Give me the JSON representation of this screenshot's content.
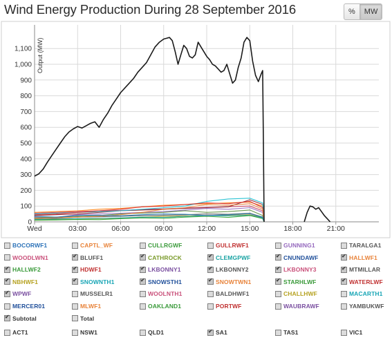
{
  "title": "Wind Energy Production During 28 September 2016",
  "toggle": {
    "percent_label": "%",
    "mw_label": "MW",
    "active": "MW"
  },
  "chart_data": {
    "type": "line",
    "title": "Wind Energy Production During 28 September 2016",
    "ylabel": "Output (MW)",
    "xlabel": "",
    "xlim_hours": [
      0,
      24
    ],
    "ylim": [
      0,
      1250
    ],
    "y_ticks": [
      "0",
      "100",
      "200",
      "300",
      "400",
      "500",
      "600",
      "700",
      "800",
      "900",
      "1,000",
      "1,100"
    ],
    "x_ticks": [
      {
        "label": "Wed",
        "hour": 0
      },
      {
        "label": "03:00",
        "hour": 3
      },
      {
        "label": "06:00",
        "hour": 6
      },
      {
        "label": "09:00",
        "hour": 9
      },
      {
        "label": "12:00",
        "hour": 12
      },
      {
        "label": "15:00",
        "hour": 15
      },
      {
        "label": "18:00",
        "hour": 18
      },
      {
        "label": "21:00",
        "hour": 21
      }
    ],
    "grid": true,
    "series": [
      {
        "name": "Subtotal",
        "color": "#1a1a1a",
        "segments": [
          {
            "hour": [
              0,
              0.3,
              0.6,
              0.9,
              1.2,
              1.5,
              1.8,
              2.1,
              2.4,
              2.7,
              3.0,
              3.3,
              3.6,
              3.9,
              4.2,
              4.5,
              4.8,
              5.1,
              5.4,
              5.7,
              6.0,
              6.3,
              6.6,
              6.9,
              7.2,
              7.5,
              7.8,
              8.1,
              8.4,
              8.7,
              9.0,
              9.2,
              9.4,
              9.6,
              9.8,
              10.0,
              10.2,
              10.4,
              10.6,
              10.8,
              11.0,
              11.2,
              11.4,
              11.6,
              11.8,
              12.0,
              12.2,
              12.4,
              12.6,
              12.8,
              13.0,
              13.2,
              13.4,
              13.6,
              13.8,
              14.0,
              14.2,
              14.4,
              14.6,
              14.8,
              15.0,
              15.2,
              15.4,
              15.6,
              15.8,
              15.9,
              15.95,
              16.0
            ],
            "mw": [
              290,
              305,
              335,
              380,
              420,
              460,
              500,
              540,
              570,
              590,
              605,
              595,
              610,
              625,
              635,
              600,
              650,
              690,
              740,
              780,
              820,
              850,
              880,
              910,
              950,
              980,
              1010,
              1060,
              1110,
              1140,
              1160,
              1165,
              1170,
              1150,
              1080,
              1000,
              1060,
              1120,
              1100,
              1050,
              1040,
              1060,
              1140,
              1110,
              1080,
              1050,
              1030,
              1000,
              990,
              970,
              950,
              960,
              1000,
              940,
              880,
              900,
              980,
              1040,
              1140,
              1170,
              1150,
              1020,
              930,
              890,
              940,
              960,
              500,
              0
            ]
          },
          {
            "hour": [
              18.8,
              19.0,
              19.2,
              19.4,
              19.6,
              19.8,
              20.0,
              20.2,
              20.4,
              20.6
            ],
            "mw": [
              0,
              60,
              100,
              95,
              80,
              90,
              65,
              40,
              20,
              0
            ]
          }
        ]
      },
      {
        "name": "BOCORWF1",
        "color": "#1f77b4",
        "segments": [
          {
            "hour": [
              0,
              1.5,
              3,
              4.5,
              6,
              7.5,
              9,
              10.5,
              12,
              13.5,
              15,
              15.9,
              16.0
            ],
            "mw": [
              35,
              30,
              40,
              42,
              38,
              45,
              50,
              48,
              40,
              45,
              52,
              30,
              0
            ]
          }
        ]
      },
      {
        "name": "CAPTL_WF",
        "color": "#e8833a",
        "segments": [
          {
            "hour": [
              0,
              1.5,
              3,
              4.5,
              6,
              7.5,
              9,
              10.5,
              12,
              13.5,
              15,
              15.9,
              16.0
            ],
            "mw": [
              20,
              25,
              30,
              35,
              45,
              60,
              80,
              90,
              110,
              105,
              115,
              80,
              0
            ]
          }
        ]
      },
      {
        "name": "CULLRGWF",
        "color": "#2ca02c",
        "segments": [
          {
            "hour": [
              0,
              1.5,
              3,
              4.5,
              6,
              7.5,
              9,
              10.5,
              12,
              13.5,
              15,
              15.9,
              16.0
            ],
            "mw": [
              10,
              12,
              15,
              14,
              20,
              25,
              22,
              30,
              35,
              28,
              40,
              20,
              0
            ]
          }
        ]
      },
      {
        "name": "GULLRWF1",
        "color": "#d62728",
        "segments": [
          {
            "hour": [
              0,
              1.5,
              3,
              4.5,
              6,
              7.5,
              9,
              10.5,
              12,
              13.5,
              15,
              15.9,
              16.0
            ],
            "mw": [
              45,
              50,
              60,
              70,
              80,
              95,
              100,
              110,
              120,
              115,
              130,
              90,
              0
            ]
          }
        ]
      },
      {
        "name": "HALLWF2",
        "color": "#17becf",
        "segments": [
          {
            "hour": [
              0,
              1.5,
              3,
              4.5,
              6,
              7.5,
              9,
              10.5,
              12,
              13.5,
              15,
              15.9,
              16.0
            ],
            "mw": [
              50,
              55,
              60,
              65,
              70,
              80,
              90,
              100,
              130,
              145,
              150,
              120,
              0
            ]
          }
        ]
      },
      {
        "name": "SNOWTWN1",
        "color": "#ff7f0e",
        "segments": [
          {
            "hour": [
              0,
              1.5,
              3,
              4.5,
              6,
              7.5,
              9,
              10.5,
              12,
              13.5,
              15,
              15.9,
              16.0
            ],
            "mw": [
              60,
              65,
              70,
              80,
              85,
              95,
              105,
              110,
              115,
              120,
              125,
              100,
              0
            ]
          }
        ]
      },
      {
        "name": "WATERLWF",
        "color": "#8c1d2a",
        "segments": [
          {
            "hour": [
              0,
              1.5,
              3,
              4.5,
              6,
              7.5,
              9,
              10.5,
              12,
              13.5,
              15,
              15.9,
              16.0
            ],
            "mw": [
              40,
              45,
              50,
              60,
              70,
              75,
              80,
              85,
              90,
              95,
              140,
              110,
              0
            ]
          }
        ]
      },
      {
        "name": "STARHLWF",
        "color": "#5b8c3a",
        "segments": [
          {
            "hour": [
              0,
              1.5,
              3,
              4.5,
              6,
              7.5,
              9,
              10.5,
              12,
              13.5,
              15,
              15.9,
              16.0
            ],
            "mw": [
              25,
              30,
              35,
              40,
              50,
              55,
              60,
              70,
              60,
              65,
              75,
              40,
              0
            ]
          }
        ]
      },
      {
        "name": "WPWF",
        "color": "#9467bd",
        "segments": [
          {
            "hour": [
              0,
              1.5,
              3,
              4.5,
              6,
              7.5,
              9,
              10.5,
              12,
              13.5,
              15,
              15.9,
              16.0
            ],
            "mw": [
              30,
              28,
              45,
              50,
              55,
              60,
              65,
              75,
              85,
              80,
              90,
              60,
              0
            ]
          }
        ]
      },
      {
        "name": "CLEMGPWF",
        "color": "#1aa3a3",
        "segments": [
          {
            "hour": [
              0,
              1.5,
              3,
              4.5,
              6,
              7.5,
              9,
              10.5,
              12,
              13.5,
              15,
              15.9,
              16.0
            ],
            "mw": [
              15,
              18,
              20,
              22,
              25,
              30,
              28,
              35,
              40,
              38,
              42,
              25,
              0
            ]
          }
        ]
      },
      {
        "name": "LKBONNY2",
        "color": "#555555",
        "segments": [
          {
            "hour": [
              0,
              1.5,
              3,
              4.5,
              6,
              7.5,
              9,
              10.5,
              12,
              13.5,
              15,
              15.9,
              16.0
            ],
            "mw": [
              20,
              22,
              30,
              32,
              35,
              40,
              42,
              45,
              50,
              48,
              55,
              30,
              0
            ]
          }
        ]
      },
      {
        "name": "HDWF1",
        "color": "#c43c5e",
        "segments": [
          {
            "hour": [
              0,
              1.5,
              3,
              4.5,
              6,
              7.5,
              9,
              10.5,
              12,
              13.5,
              15,
              15.9,
              16.0
            ],
            "mw": [
              55,
              60,
              65,
              70,
              72,
              78,
              82,
              88,
              92,
              96,
              100,
              70,
              0
            ]
          }
        ]
      },
      {
        "name": "NBHWF1",
        "color": "#b5a11f",
        "segments": [
          {
            "hour": [
              0,
              1.5,
              3,
              4.5,
              6,
              7.5,
              9,
              10.5,
              12,
              13.5,
              15,
              15.9,
              16.0
            ],
            "mw": [
              12,
              14,
              18,
              20,
              24,
              30,
              34,
              38,
              40,
              42,
              45,
              28,
              0
            ]
          }
        ]
      }
    ]
  },
  "legend": {
    "items": [
      {
        "label": "BOCORWF1",
        "color": "#2c72b8",
        "checked": false
      },
      {
        "label": "CAPTL_WF",
        "color": "#e8833a",
        "checked": false
      },
      {
        "label": "CULLRGWF",
        "color": "#3a9a3a",
        "checked": false
      },
      {
        "label": "GULLRWF1",
        "color": "#c03030",
        "checked": false
      },
      {
        "label": "GUNNING1",
        "color": "#9467bd",
        "checked": false
      },
      {
        "label": "TARALGA1",
        "color": "#555555",
        "checked": false
      },
      {
        "label": "WOODLWN1",
        "color": "#c9507a",
        "checked": false
      },
      {
        "label": "BLUFF1",
        "color": "#555555",
        "checked": true
      },
      {
        "label": "CATHROCK",
        "color": "#7a9a2a",
        "checked": true
      },
      {
        "label": "CLEMGPWF",
        "color": "#1aa3a3",
        "checked": true
      },
      {
        "label": "CNUNDAWF",
        "color": "#1f4f9a",
        "checked": true
      },
      {
        "label": "HALLWF1",
        "color": "#e8833a",
        "checked": true
      },
      {
        "label": "HALLWF2",
        "color": "#3a9a3a",
        "checked": true
      },
      {
        "label": "HDWF1",
        "color": "#c03030",
        "checked": true
      },
      {
        "label": "LKBONNY1",
        "color": "#7a4fa0",
        "checked": true
      },
      {
        "label": "LKBONNY2",
        "color": "#555555",
        "checked": true
      },
      {
        "label": "LKBONNY3",
        "color": "#c9507a",
        "checked": true
      },
      {
        "label": "MTMILLAR",
        "color": "#555555",
        "checked": true
      },
      {
        "label": "NBHWF1",
        "color": "#b5a11f",
        "checked": true
      },
      {
        "label": "SNOWNTH1",
        "color": "#17a5b5",
        "checked": true
      },
      {
        "label": "SNOWSTH1",
        "color": "#1f4f9a",
        "checked": true
      },
      {
        "label": "SNOWTWN1",
        "color": "#e8833a",
        "checked": true
      },
      {
        "label": "STARHLWF",
        "color": "#3a9a3a",
        "checked": true
      },
      {
        "label": "WATERLWF",
        "color": "#c03030",
        "checked": true
      },
      {
        "label": "WPWF",
        "color": "#7a4fa0",
        "checked": true
      },
      {
        "label": "MUSSELR1",
        "color": "#555555",
        "checked": false
      },
      {
        "label": "WOOLNTH1",
        "color": "#c9507a",
        "checked": false
      },
      {
        "label": "BALDHWF1",
        "color": "#555555",
        "checked": false
      },
      {
        "label": "CHALLHWF",
        "color": "#b5a11f",
        "checked": false
      },
      {
        "label": "MACARTH1",
        "color": "#17a5b5",
        "checked": false
      },
      {
        "label": "MERCER01",
        "color": "#1f4f9a",
        "checked": false
      },
      {
        "label": "MLWF1",
        "color": "#e8833a",
        "checked": false
      },
      {
        "label": "OAKLAND1",
        "color": "#3a9a3a",
        "checked": false
      },
      {
        "label": "PORTWF",
        "color": "#c03030",
        "checked": false
      },
      {
        "label": "WAUBRAWF",
        "color": "#7a4fa0",
        "checked": false
      },
      {
        "label": "YAMBUKWF",
        "color": "#555555",
        "checked": false
      },
      {
        "label": "Subtotal",
        "color": "#333333",
        "checked": true
      },
      {
        "label": "Total",
        "color": "#333333",
        "checked": false
      }
    ],
    "regions": [
      {
        "label": "ACT1",
        "color": "#333333",
        "checked": false
      },
      {
        "label": "NSW1",
        "color": "#333333",
        "checked": false
      },
      {
        "label": "QLD1",
        "color": "#333333",
        "checked": false
      },
      {
        "label": "SA1",
        "color": "#333333",
        "checked": true
      },
      {
        "label": "TAS1",
        "color": "#333333",
        "checked": false
      },
      {
        "label": "VIC1",
        "color": "#333333",
        "checked": false
      }
    ]
  }
}
